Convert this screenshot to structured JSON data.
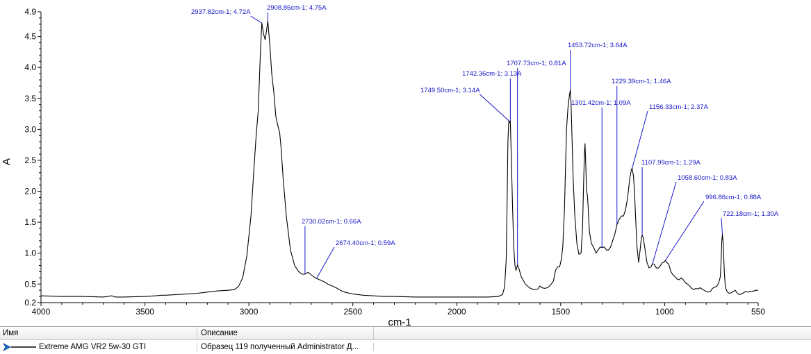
{
  "chart_data": {
    "type": "line",
    "xlabel": "cm-1",
    "ylabel": "A",
    "xlim": [
      4000,
      550
    ],
    "ylim": [
      0.2,
      4.9
    ],
    "x_reversed": true,
    "grid": false,
    "x_ticks": [
      4000,
      3500,
      3000,
      2500,
      2000,
      1500,
      1000,
      550
    ],
    "x_tick_labels": [
      "4000",
      "3500",
      "3000",
      "2500",
      "2000",
      "1500",
      "1000",
      "550"
    ],
    "y_ticks": [
      0.2,
      0.5,
      1.0,
      1.5,
      2.0,
      2.5,
      3.0,
      3.5,
      4.0,
      4.5,
      4.9
    ],
    "y_tick_labels": [
      "0.2",
      "0.5",
      "1.0",
      "1.5",
      "2.0",
      "2.5",
      "3.0",
      "3.5",
      "4.0",
      "4.5",
      "4.9"
    ],
    "series": [
      {
        "name": "Extreme AMG VR2 5w-30 GTI",
        "color": "#000000",
        "points": [
          [
            4000,
            0.31
          ],
          [
            3900,
            0.3
          ],
          [
            3800,
            0.3
          ],
          [
            3700,
            0.29
          ],
          [
            3660,
            0.31
          ],
          [
            3640,
            0.29
          ],
          [
            3600,
            0.29
          ],
          [
            3500,
            0.3
          ],
          [
            3450,
            0.31
          ],
          [
            3420,
            0.32
          ],
          [
            3400,
            0.32
          ],
          [
            3350,
            0.33
          ],
          [
            3300,
            0.34
          ],
          [
            3250,
            0.35
          ],
          [
            3200,
            0.37
          ],
          [
            3150,
            0.39
          ],
          [
            3100,
            0.4
          ],
          [
            3070,
            0.41
          ],
          [
            3050,
            0.46
          ],
          [
            3030,
            0.6
          ],
          [
            3010,
            0.95
          ],
          [
            2990,
            1.6
          ],
          [
            2975,
            2.4
          ],
          [
            2965,
            2.9
          ],
          [
            2955,
            3.3
          ],
          [
            2945,
            4.2
          ],
          [
            2937.82,
            4.72
          ],
          [
            2930,
            4.55
          ],
          [
            2922,
            4.45
          ],
          [
            2915,
            4.6
          ],
          [
            2908.86,
            4.75
          ],
          [
            2900,
            4.4
          ],
          [
            2890,
            3.9
          ],
          [
            2880,
            3.6
          ],
          [
            2870,
            3.2
          ],
          [
            2860,
            3.05
          ],
          [
            2852,
            2.95
          ],
          [
            2845,
            2.7
          ],
          [
            2835,
            2.2
          ],
          [
            2820,
            1.6
          ],
          [
            2800,
            1.05
          ],
          [
            2780,
            0.8
          ],
          [
            2760,
            0.7
          ],
          [
            2745,
            0.66
          ],
          [
            2730.02,
            0.66
          ],
          [
            2715,
            0.69
          ],
          [
            2700,
            0.65
          ],
          [
            2685,
            0.61
          ],
          [
            2674.4,
            0.59
          ],
          [
            2660,
            0.57
          ],
          [
            2640,
            0.54
          ],
          [
            2620,
            0.5
          ],
          [
            2600,
            0.47
          ],
          [
            2580,
            0.44
          ],
          [
            2560,
            0.4
          ],
          [
            2540,
            0.37
          ],
          [
            2500,
            0.34
          ],
          [
            2450,
            0.32
          ],
          [
            2400,
            0.31
          ],
          [
            2350,
            0.3
          ],
          [
            2300,
            0.3
          ],
          [
            2200,
            0.29
          ],
          [
            2100,
            0.29
          ],
          [
            2000,
            0.29
          ],
          [
            1950,
            0.29
          ],
          [
            1900,
            0.29
          ],
          [
            1850,
            0.29
          ],
          [
            1800,
            0.3
          ],
          [
            1780,
            0.33
          ],
          [
            1770,
            0.45
          ],
          [
            1762,
            0.9
          ],
          [
            1757,
            2.0
          ],
          [
            1754,
            2.8
          ],
          [
            1749.5,
            3.14
          ],
          [
            1745,
            3.11
          ],
          [
            1742.36,
            3.13
          ],
          [
            1738,
            2.6
          ],
          [
            1732,
            1.8
          ],
          [
            1726,
            1.1
          ],
          [
            1720,
            0.8
          ],
          [
            1715,
            0.72
          ],
          [
            1707.73,
            0.81
          ],
          [
            1700,
            0.74
          ],
          [
            1690,
            0.62
          ],
          [
            1670,
            0.5
          ],
          [
            1650,
            0.44
          ],
          [
            1630,
            0.41
          ],
          [
            1610,
            0.42
          ],
          [
            1600,
            0.47
          ],
          [
            1590,
            0.44
          ],
          [
            1575,
            0.43
          ],
          [
            1560,
            0.45
          ],
          [
            1545,
            0.5
          ],
          [
            1535,
            0.55
          ],
          [
            1525,
            0.72
          ],
          [
            1515,
            0.78
          ],
          [
            1505,
            0.78
          ],
          [
            1497,
            0.9
          ],
          [
            1490,
            1.1
          ],
          [
            1482,
            1.7
          ],
          [
            1472,
            3.0
          ],
          [
            1465,
            3.35
          ],
          [
            1458,
            3.55
          ],
          [
            1453.72,
            3.64
          ],
          [
            1450,
            3.4
          ],
          [
            1445,
            2.8
          ],
          [
            1440,
            2.2
          ],
          [
            1432,
            1.6
          ],
          [
            1422,
            1.15
          ],
          [
            1412,
            0.98
          ],
          [
            1402,
            1.0
          ],
          [
            1395,
            1.4
          ],
          [
            1390,
            2.1
          ],
          [
            1386,
            2.6
          ],
          [
            1383,
            2.77
          ],
          [
            1379,
            2.4
          ],
          [
            1376,
            2.0
          ],
          [
            1372,
            1.95
          ],
          [
            1368,
            1.75
          ],
          [
            1362,
            1.35
          ],
          [
            1352,
            1.15
          ],
          [
            1342,
            1.1
          ],
          [
            1330,
            1.0
          ],
          [
            1320,
            1.05
          ],
          [
            1310,
            1.1
          ],
          [
            1301.42,
            1.09
          ],
          [
            1290,
            1.1
          ],
          [
            1280,
            1.05
          ],
          [
            1270,
            1.05
          ],
          [
            1260,
            1.1
          ],
          [
            1250,
            1.2
          ],
          [
            1240,
            1.3
          ],
          [
            1229.39,
            1.46
          ],
          [
            1218,
            1.55
          ],
          [
            1208,
            1.6
          ],
          [
            1198,
            1.6
          ],
          [
            1188,
            1.7
          ],
          [
            1178,
            1.9
          ],
          [
            1168,
            2.2
          ],
          [
            1160,
            2.35
          ],
          [
            1156.33,
            2.37
          ],
          [
            1150,
            2.25
          ],
          [
            1145,
            2.0
          ],
          [
            1140,
            1.6
          ],
          [
            1133,
            1.1
          ],
          [
            1125,
            0.85
          ],
          [
            1118,
            1.05
          ],
          [
            1112,
            1.25
          ],
          [
            1107.99,
            1.29
          ],
          [
            1103,
            1.25
          ],
          [
            1096,
            1.1
          ],
          [
            1085,
            0.85
          ],
          [
            1075,
            0.76
          ],
          [
            1065,
            0.78
          ],
          [
            1058.6,
            0.83
          ],
          [
            1050,
            0.82
          ],
          [
            1040,
            0.76
          ],
          [
            1030,
            0.76
          ],
          [
            1020,
            0.8
          ],
          [
            1010,
            0.85
          ],
          [
            1005,
            0.85
          ],
          [
            996.86,
            0.88
          ],
          [
            990,
            0.85
          ],
          [
            980,
            0.82
          ],
          [
            970,
            0.7
          ],
          [
            960,
            0.65
          ],
          [
            950,
            0.62
          ],
          [
            940,
            0.58
          ],
          [
            930,
            0.57
          ],
          [
            920,
            0.6
          ],
          [
            910,
            0.57
          ],
          [
            900,
            0.52
          ],
          [
            890,
            0.5
          ],
          [
            880,
            0.47
          ],
          [
            870,
            0.43
          ],
          [
            860,
            0.41
          ],
          [
            850,
            0.43
          ],
          [
            840,
            0.42
          ],
          [
            830,
            0.44
          ],
          [
            820,
            0.42
          ],
          [
            810,
            0.4
          ],
          [
            800,
            0.38
          ],
          [
            790,
            0.37
          ],
          [
            780,
            0.38
          ],
          [
            770,
            0.43
          ],
          [
            760,
            0.45
          ],
          [
            750,
            0.46
          ],
          [
            740,
            0.52
          ],
          [
            732,
            0.62
          ],
          [
            728,
            0.9
          ],
          [
            725,
            1.2
          ],
          [
            722.18,
            1.3
          ],
          [
            718,
            1.15
          ],
          [
            713,
            0.7
          ],
          [
            708,
            0.45
          ],
          [
            700,
            0.38
          ],
          [
            690,
            0.35
          ],
          [
            680,
            0.36
          ],
          [
            670,
            0.38
          ],
          [
            660,
            0.4
          ],
          [
            650,
            0.35
          ],
          [
            640,
            0.33
          ],
          [
            630,
            0.34
          ],
          [
            620,
            0.36
          ],
          [
            610,
            0.38
          ],
          [
            600,
            0.37
          ],
          [
            590,
            0.38
          ],
          [
            580,
            0.38
          ],
          [
            570,
            0.39
          ],
          [
            560,
            0.4
          ],
          [
            550,
            0.4
          ]
        ]
      }
    ],
    "annotations": [
      {
        "x": 2937.82,
        "y": 4.72,
        "text": "2937.82cm-1; 4.72A"
      },
      {
        "x": 2908.86,
        "y": 4.75,
        "text": "2908.86cm-1; 4.75A"
      },
      {
        "x": 2730.02,
        "y": 0.66,
        "text": "2730.02cm-1; 0.66A"
      },
      {
        "x": 2674.4,
        "y": 0.59,
        "text": "2674.40cm-1; 0.59A"
      },
      {
        "x": 1749.5,
        "y": 3.14,
        "text": "1749.50cm-1; 3.14A"
      },
      {
        "x": 1742.36,
        "y": 3.13,
        "text": "1742.36cm-1; 3.13A"
      },
      {
        "x": 1707.73,
        "y": 0.81,
        "text": "1707.73cm-1; 0.81A"
      },
      {
        "x": 1453.72,
        "y": 3.64,
        "text": "1453.72cm-1; 3.64A"
      },
      {
        "x": 1301.42,
        "y": 1.09,
        "text": "1301.42cm-1; 1.09A"
      },
      {
        "x": 1229.39,
        "y": 1.46,
        "text": "1229.39cm-1; 1.46A"
      },
      {
        "x": 1156.33,
        "y": 2.37,
        "text": "1156.33cm-1; 2.37A"
      },
      {
        "x": 1107.99,
        "y": 1.29,
        "text": "1107.99cm-1; 1.29A"
      },
      {
        "x": 1058.6,
        "y": 0.83,
        "text": "1058.60cm-1; 0.83A"
      },
      {
        "x": 996.86,
        "y": 0.88,
        "text": "996.86cm-1; 0.88A"
      },
      {
        "x": 722.18,
        "y": 1.3,
        "text": "722.18cm-1; 1.30A"
      }
    ]
  },
  "legend_table": {
    "header_name": "Имя",
    "header_description": "Описание",
    "rows": [
      {
        "name": "Extreme AMG VR2 5w-30 GTI",
        "description": "Образец 119 полученный Administrator Д...",
        "line_color": "#000000",
        "marker_icon": "arrow-right-icon",
        "marker_color": "#1e6fd0"
      }
    ]
  },
  "colors": {
    "annotation": "#1515c8",
    "spectrum": "#000000",
    "axis": "#000000"
  }
}
